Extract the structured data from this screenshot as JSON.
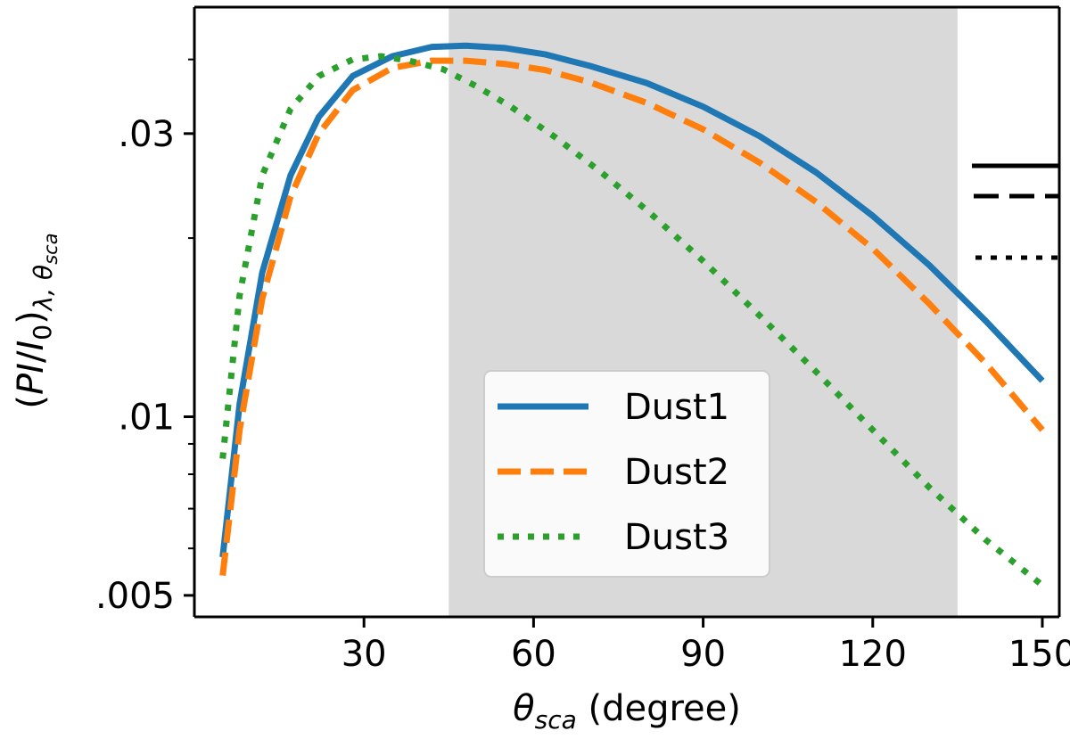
{
  "chart_data": {
    "type": "line",
    "xlabel": {
      "prefix": "θ",
      "sub": "sca",
      "suffix": " (degree)"
    },
    "ylabel": {
      "open": "(",
      "main": "PI",
      "slash": "/",
      "i": "I",
      "i_sub": "0",
      "close": ")",
      "sub": "λ, θ",
      "subsub": "sca"
    },
    "xlim": [
      0,
      153
    ],
    "ylim_log": [
      0.0046,
      0.049
    ],
    "y_scale": "log",
    "grid": false,
    "x_ticks": [
      {
        "value": 30,
        "label": "30"
      },
      {
        "value": 60,
        "label": "60"
      },
      {
        "value": 90,
        "label": "90"
      },
      {
        "value": 120,
        "label": "120"
      },
      {
        "value": 150,
        "label": "150"
      }
    ],
    "y_ticks": [
      {
        "value": 0.005,
        "label": ".005"
      },
      {
        "value": 0.01,
        "label": ".01"
      },
      {
        "value": 0.03,
        "label": ".03"
      }
    ],
    "shaded_region": {
      "x_start": 45,
      "x_end": 135,
      "color": "#d9d9d9"
    },
    "legend": {
      "placement": "lower-center"
    },
    "series": [
      {
        "name": "Dust1",
        "color": "#1f77b4",
        "style": "solid",
        "x": [
          5,
          8,
          12,
          17,
          22,
          28,
          35,
          42,
          48,
          55,
          62,
          70,
          80,
          90,
          100,
          110,
          120,
          130,
          140,
          150
        ],
        "y": [
          0.0058,
          0.0105,
          0.0175,
          0.0255,
          0.032,
          0.0375,
          0.0405,
          0.042,
          0.0422,
          0.0418,
          0.0408,
          0.039,
          0.0365,
          0.0333,
          0.0297,
          0.0258,
          0.0218,
          0.018,
          0.0145,
          0.0115
        ]
      },
      {
        "name": "Dust2",
        "color": "#ff7f0e",
        "style": "dashed",
        "x": [
          5,
          8,
          12,
          17,
          22,
          28,
          35,
          42,
          48,
          55,
          62,
          70,
          80,
          90,
          100,
          110,
          120,
          130,
          140,
          150
        ],
        "y": [
          0.0054,
          0.0095,
          0.0158,
          0.0235,
          0.03,
          0.0355,
          0.0387,
          0.0398,
          0.0398,
          0.0393,
          0.0384,
          0.0366,
          0.0338,
          0.0305,
          0.0268,
          0.023,
          0.0192,
          0.0155,
          0.0123,
          0.0095
        ]
      },
      {
        "name": "Dust3",
        "color": "#2ca02c",
        "style": "dotted",
        "x": [
          5,
          8,
          12,
          17,
          22,
          28,
          33,
          38,
          44,
          50,
          56,
          64,
          72,
          80,
          90,
          100,
          110,
          120,
          130,
          140,
          150
        ],
        "y": [
          0.0085,
          0.016,
          0.0255,
          0.033,
          0.0375,
          0.04,
          0.0405,
          0.0398,
          0.0385,
          0.036,
          0.0333,
          0.0295,
          0.0258,
          0.0223,
          0.0183,
          0.0148,
          0.0119,
          0.0095,
          0.0076,
          0.0062,
          0.0052
        ]
      }
    ]
  }
}
